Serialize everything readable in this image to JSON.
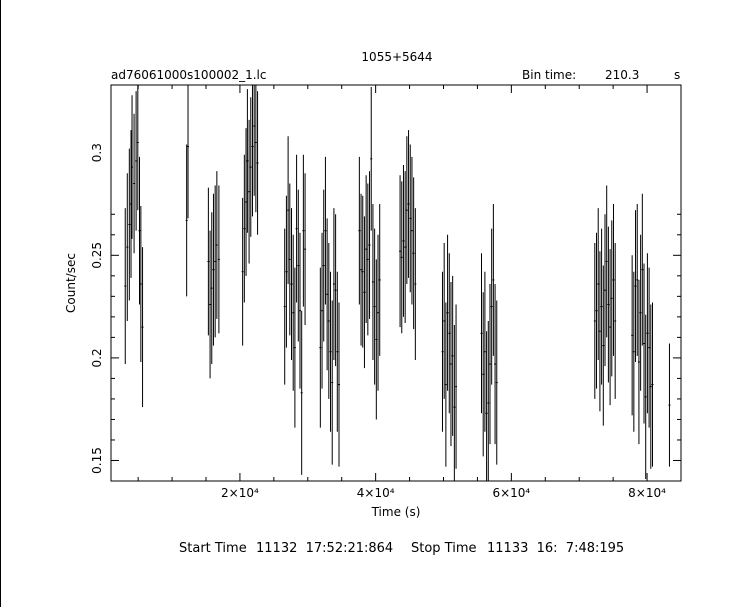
{
  "chart_data": {
    "type": "scatter",
    "title": "1055+5644",
    "subtitle_left": "ad76061000s100002_1.lc",
    "bin_time_label": "Bin time:",
    "bin_time_value": "210.3",
    "bin_time_unit": "s",
    "xlabel": "Time (s)",
    "ylabel": "Count/sec",
    "xlim": [
      1000,
      85000
    ],
    "ylim": [
      0.14,
      0.333
    ],
    "x_ticks": [
      20000,
      40000,
      60000,
      80000
    ],
    "x_tick_labels": [
      "2×10⁴",
      "4×10⁴",
      "6×10⁴",
      "8×10⁴"
    ],
    "y_ticks": [
      0.15,
      0.2,
      0.25,
      0.3
    ],
    "y_tick_labels": [
      "0.15",
      "0.2",
      "0.25",
      "0.3"
    ],
    "grid": false,
    "series": [
      {
        "points": [
          [
            3100,
            0.235,
            0.038
          ],
          [
            3400,
            0.254,
            0.036
          ],
          [
            3700,
            0.265,
            0.037
          ],
          [
            3950,
            0.275,
            0.036
          ],
          [
            4100,
            0.293,
            0.035
          ],
          [
            4400,
            0.285,
            0.034
          ],
          [
            4700,
            0.296,
            0.034
          ],
          [
            4950,
            0.305,
            0.033
          ],
          [
            5200,
            0.262,
            0.036
          ],
          [
            5400,
            0.236,
            0.038
          ],
          [
            5650,
            0.215,
            0.039
          ],
          [
            12150,
            0.267,
            0.037
          ],
          [
            12350,
            0.303,
            0.035
          ],
          [
            15350,
            0.247,
            0.036
          ],
          [
            15600,
            0.226,
            0.036
          ],
          [
            15850,
            0.234,
            0.037
          ],
          [
            16100,
            0.243,
            0.037
          ],
          [
            16350,
            0.247,
            0.037
          ],
          [
            16600,
            0.255,
            0.036
          ],
          [
            16900,
            0.248,
            0.036
          ],
          [
            20400,
            0.242,
            0.036
          ],
          [
            20650,
            0.263,
            0.036
          ],
          [
            20900,
            0.276,
            0.036
          ],
          [
            21100,
            0.296,
            0.035
          ],
          [
            21350,
            0.281,
            0.035
          ],
          [
            21600,
            0.293,
            0.034
          ],
          [
            21850,
            0.303,
            0.034
          ],
          [
            22100,
            0.313,
            0.034
          ],
          [
            22350,
            0.305,
            0.034
          ],
          [
            22600,
            0.295,
            0.035
          ],
          [
            26600,
            0.225,
            0.038
          ],
          [
            26850,
            0.242,
            0.037
          ],
          [
            27100,
            0.272,
            0.036
          ],
          [
            27350,
            0.248,
            0.037
          ],
          [
            27600,
            0.236,
            0.037
          ],
          [
            27850,
            0.222,
            0.038
          ],
          [
            28100,
            0.205,
            0.039
          ],
          [
            28350,
            0.263,
            0.036
          ],
          [
            28600,
            0.245,
            0.037
          ],
          [
            28850,
            0.223,
            0.038
          ],
          [
            29100,
            0.183,
            0.04
          ],
          [
            29350,
            0.262,
            0.037
          ],
          [
            29600,
            0.253,
            0.037
          ],
          [
            31850,
            0.205,
            0.039
          ],
          [
            32100,
            0.223,
            0.038
          ],
          [
            32350,
            0.245,
            0.037
          ],
          [
            32600,
            0.262,
            0.036
          ],
          [
            32850,
            0.231,
            0.037
          ],
          [
            33100,
            0.218,
            0.038
          ],
          [
            33350,
            0.203,
            0.039
          ],
          [
            33600,
            0.188,
            0.04
          ],
          [
            33850,
            0.236,
            0.037
          ],
          [
            34100,
            0.233,
            0.037
          ],
          [
            34350,
            0.203,
            0.039
          ],
          [
            34600,
            0.187,
            0.04
          ],
          [
            37600,
            0.262,
            0.036
          ],
          [
            37850,
            0.243,
            0.037
          ],
          [
            38100,
            0.242,
            0.037
          ],
          [
            38350,
            0.232,
            0.037
          ],
          [
            38600,
            0.253,
            0.036
          ],
          [
            38850,
            0.248,
            0.037
          ],
          [
            39100,
            0.255,
            0.036
          ],
          [
            39350,
            0.297,
            0.035
          ],
          [
            39600,
            0.237,
            0.038
          ],
          [
            39850,
            0.225,
            0.038
          ],
          [
            40100,
            0.209,
            0.039
          ],
          [
            40350,
            0.222,
            0.038
          ],
          [
            40600,
            0.238,
            0.037
          ],
          [
            43600,
            0.252,
            0.037
          ],
          [
            43850,
            0.249,
            0.037
          ],
          [
            44100,
            0.257,
            0.037
          ],
          [
            44350,
            0.254,
            0.037
          ],
          [
            44600,
            0.272,
            0.036
          ],
          [
            44850,
            0.275,
            0.036
          ],
          [
            45100,
            0.268,
            0.036
          ],
          [
            45350,
            0.262,
            0.036
          ],
          [
            45600,
            0.251,
            0.037
          ],
          [
            45850,
            0.236,
            0.037
          ],
          [
            49850,
            0.203,
            0.039
          ],
          [
            50100,
            0.218,
            0.038
          ],
          [
            50350,
            0.187,
            0.04
          ],
          [
            50600,
            0.222,
            0.038
          ],
          [
            50850,
            0.212,
            0.039
          ],
          [
            51100,
            0.197,
            0.04
          ],
          [
            51350,
            0.201,
            0.039
          ],
          [
            51600,
            0.176,
            0.04
          ],
          [
            51850,
            0.186,
            0.04
          ],
          [
            55600,
            0.212,
            0.039
          ],
          [
            55850,
            0.192,
            0.04
          ],
          [
            56100,
            0.203,
            0.039
          ],
          [
            56350,
            0.173,
            0.04
          ],
          [
            56600,
            0.178,
            0.04
          ],
          [
            56850,
            0.197,
            0.039
          ],
          [
            57100,
            0.225,
            0.038
          ],
          [
            57350,
            0.238,
            0.037
          ],
          [
            57600,
            0.197,
            0.039
          ],
          [
            57850,
            0.188,
            0.04
          ],
          [
            72300,
            0.218,
            0.038
          ],
          [
            72550,
            0.223,
            0.038
          ],
          [
            72800,
            0.236,
            0.037
          ],
          [
            73050,
            0.213,
            0.039
          ],
          [
            73300,
            0.225,
            0.038
          ],
          [
            73550,
            0.206,
            0.039
          ],
          [
            73800,
            0.233,
            0.037
          ],
          [
            74050,
            0.247,
            0.037
          ],
          [
            74300,
            0.226,
            0.038
          ],
          [
            74550,
            0.215,
            0.038
          ],
          [
            74800,
            0.229,
            0.038
          ],
          [
            75050,
            0.238,
            0.037
          ],
          [
            75300,
            0.218,
            0.038
          ],
          [
            77800,
            0.211,
            0.039
          ],
          [
            78050,
            0.203,
            0.039
          ],
          [
            78300,
            0.235,
            0.037
          ],
          [
            78550,
            0.238,
            0.037
          ],
          [
            78800,
            0.198,
            0.04
          ],
          [
            79050,
            0.222,
            0.038
          ],
          [
            79300,
            0.243,
            0.037
          ],
          [
            79550,
            0.207,
            0.039
          ],
          [
            79800,
            0.181,
            0.04
          ],
          [
            80050,
            0.212,
            0.039
          ],
          [
            80300,
            0.205,
            0.039
          ],
          [
            80550,
            0.186,
            0.04
          ],
          [
            80800,
            0.187,
            0.04
          ],
          [
            83300,
            0.177,
            0.03
          ]
        ]
      }
    ]
  },
  "footer": {
    "start_label": "Start Time",
    "start_value": "11132  17:52:21:864",
    "stop_label": "Stop Time",
    "stop_value": "11133  16:  7:48:195"
  }
}
